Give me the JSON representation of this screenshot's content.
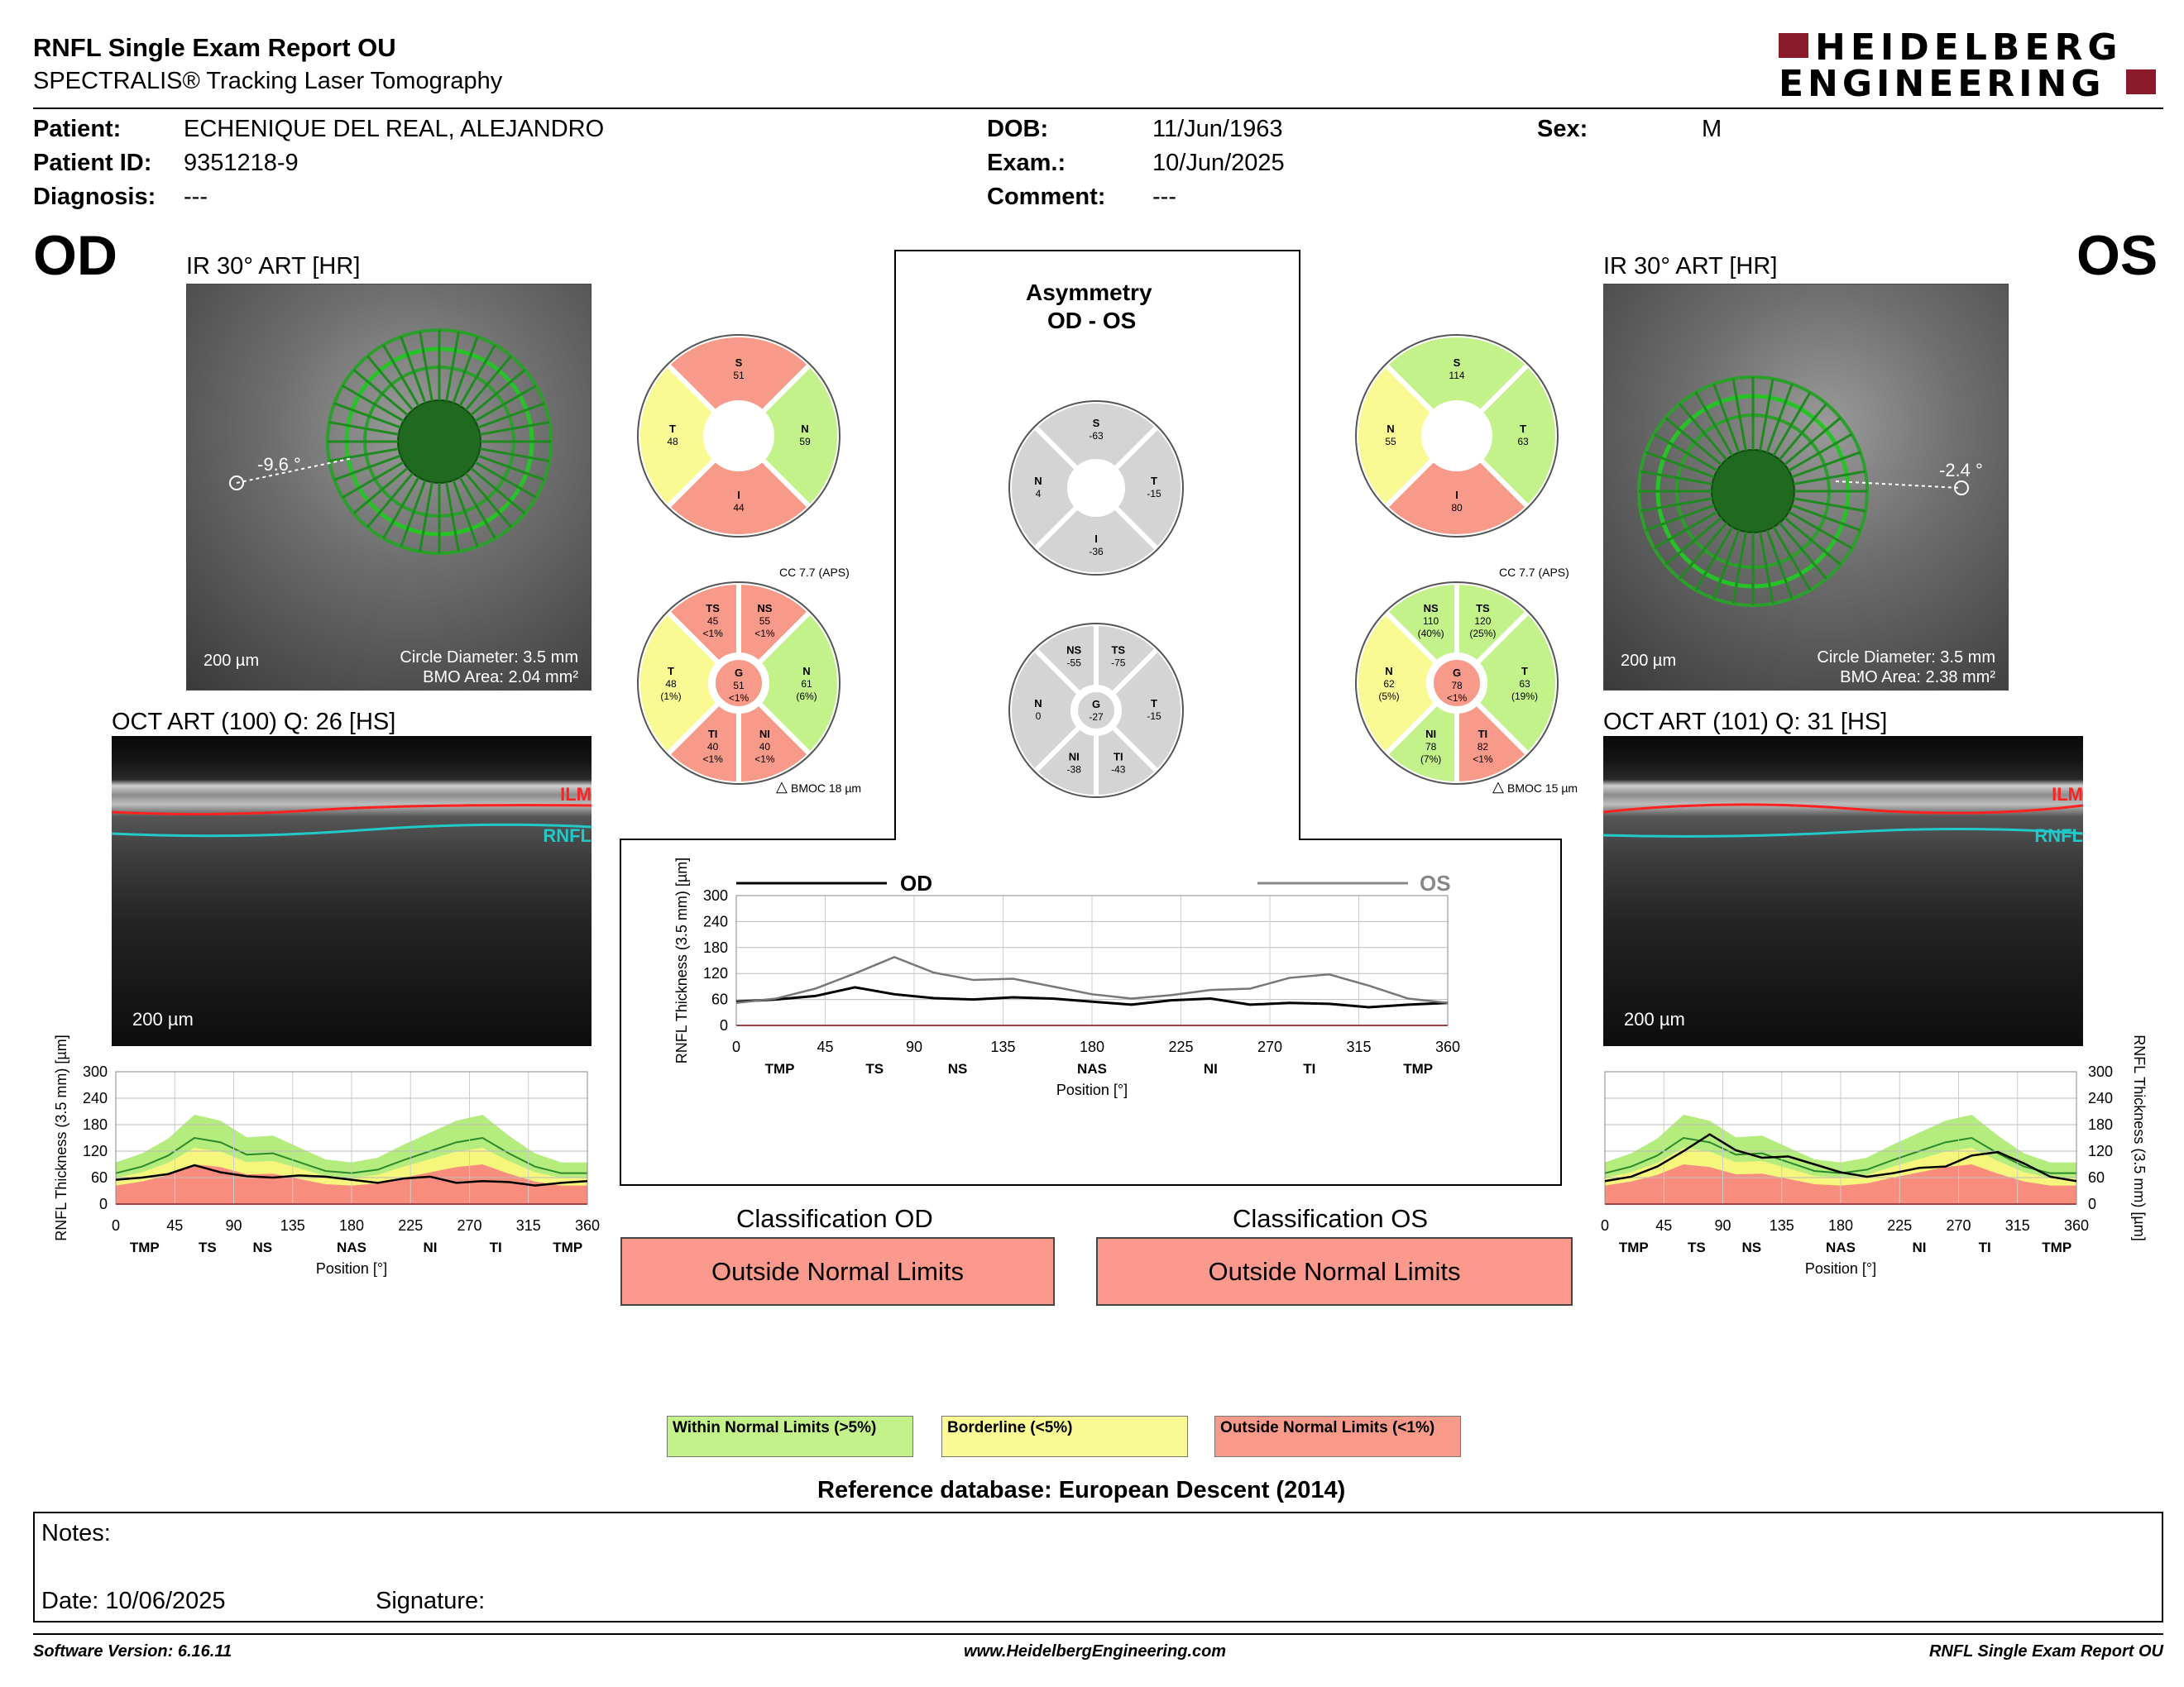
{
  "report": {
    "title": "RNFL Single Exam Report OU",
    "subtitle": "SPECTRALIS® Tracking Laser Tomography"
  },
  "brand": {
    "line1": "HEIDELBERG",
    "line2": "ENGINEERING",
    "accent": "#8b1a2a"
  },
  "patient": {
    "name_label": "Patient:",
    "name": "ECHENIQUE DEL REAL, ALEJANDRO",
    "id_label": "Patient ID:",
    "id": "9351218-9",
    "diagnosis_label": "Diagnosis:",
    "diagnosis": "---",
    "dob_label": "DOB:",
    "dob": "11/Jun/1963",
    "exam_label": "Exam.:",
    "exam": "10/Jun/2025",
    "comment_label": "Comment:",
    "comment": "---",
    "sex_label": "Sex:",
    "sex": "M"
  },
  "od": {
    "eye": "OD",
    "ir_label": "IR 30° ART [HR]",
    "angle": "-9.6 °",
    "scale": "200 µm",
    "circle_diameter": "Circle Diameter: 3.5 mm",
    "bmo_area": "BMO Area: 2.04 mm²",
    "oct_label": "OCT ART (100) Q: 26 [HS]",
    "oct_scale": "200 µm",
    "ilm": "ILM",
    "rnfl": "RNFL",
    "quad": {
      "S": "51",
      "N": "59",
      "I": "44",
      "T": "48"
    },
    "cc": "CC 7.7 (APS)",
    "sectors": {
      "TS": [
        "45",
        "<1%"
      ],
      "NS": [
        "55",
        "<1%"
      ],
      "N": [
        "61",
        "(6%)"
      ],
      "NI": [
        "40",
        "<1%"
      ],
      "TI": [
        "40",
        "<1%"
      ],
      "T": [
        "48",
        "(1%)"
      ],
      "G": [
        "51",
        "<1%"
      ]
    },
    "bmoc": "BMOC 18 µm"
  },
  "os": {
    "eye": "OS",
    "ir_label": "IR 30° ART [HR]",
    "angle": "-2.4 °",
    "scale": "200 µm",
    "circle_diameter": "Circle Diameter: 3.5 mm",
    "bmo_area": "BMO Area: 2.38 mm²",
    "oct_label": "OCT ART (101) Q: 31 [HS]",
    "oct_scale": "200 µm",
    "ilm": "ILM",
    "rnfl": "RNFL",
    "quad": {
      "S": "114",
      "T": "63",
      "I": "80",
      "N": "55"
    },
    "cc": "CC 7.7 (APS)",
    "sectors": {
      "NS": [
        "110",
        "(40%)"
      ],
      "TS": [
        "120",
        "(25%)"
      ],
      "T": [
        "63",
        "(19%)"
      ],
      "TI": [
        "82",
        "<1%"
      ],
      "NI": [
        "78",
        "(7%)"
      ],
      "N": [
        "62",
        "(5%)"
      ],
      "G": [
        "78",
        "<1%"
      ]
    },
    "bmoc": "BMOC 15 µm"
  },
  "asymmetry": {
    "title1": "Asymmetry",
    "title2": "OD - OS",
    "quad": {
      "S": "-63",
      "N": "4",
      "T": "-15",
      "I": "-36"
    },
    "sectors": {
      "NS": "-55",
      "TS": "-75",
      "N": "0",
      "G": "-27",
      "T": "-15",
      "NI": "-38",
      "TI": "-43"
    }
  },
  "colors": {
    "green": "#c3f28a",
    "yellow": "#fafa94",
    "red": "#f89a8a",
    "gray": "#d4d4d4"
  },
  "charts": {
    "ylabel": "RNFL Thickness (3.5 mm) [µm]",
    "xlabel": "Position [°]",
    "yticks": [
      "300",
      "240",
      "180",
      "120",
      "60",
      "0"
    ],
    "xticks": [
      "0",
      "45",
      "90",
      "135",
      "180",
      "225",
      "270",
      "315",
      "360"
    ],
    "sectors": [
      "TMP",
      "TS",
      "NS",
      "NAS",
      "NI",
      "TI",
      "TMP"
    ],
    "od_legend": "OD",
    "os_legend": "OS"
  },
  "classification": {
    "od_title": "Classification OD",
    "os_title": "Classification OS",
    "od_result": "Outside Normal Limits",
    "os_result": "Outside Normal Limits"
  },
  "legend": {
    "within": "Within Normal Limits (>5%)",
    "borderline": "Borderline (<5%)",
    "outside": "Outside Normal Limits (<1%)"
  },
  "reference": "Reference database: European Descent (2014)",
  "notes": {
    "label": "Notes:",
    "date": "Date: 10/06/2025",
    "signature": "Signature:"
  },
  "footer": {
    "version": "Software Version: 6.16.11",
    "url": "www.HeidelbergEngineering.com",
    "report": "RNFL Single Exam Report OU"
  },
  "chart_data": [
    {
      "type": "line",
      "title": "",
      "xlabel": "Position [°]",
      "ylabel": "RNFL Thickness (3.5 mm) [µm]",
      "xlim": [
        0,
        360
      ],
      "ylim": [
        0,
        300
      ],
      "x": [
        0,
        20,
        40,
        60,
        80,
        100,
        120,
        140,
        160,
        180,
        200,
        220,
        240,
        260,
        280,
        300,
        320,
        340,
        360
      ],
      "series": [
        {
          "name": "OD",
          "values": [
            55,
            60,
            68,
            88,
            72,
            63,
            60,
            65,
            62,
            55,
            48,
            58,
            62,
            48,
            52,
            50,
            42,
            48,
            52
          ]
        },
        {
          "name": "OS",
          "values": [
            52,
            62,
            85,
            120,
            158,
            122,
            105,
            108,
            90,
            72,
            62,
            70,
            82,
            85,
            110,
            118,
            92,
            62,
            52
          ]
        }
      ]
    },
    {
      "type": "line",
      "title": "",
      "xlabel": "Position [°]",
      "ylabel": "RNFL Thickness (3.5 mm) [µm]",
      "xlim": [
        0,
        360
      ],
      "ylim": [
        0,
        300
      ],
      "x": [
        0,
        20,
        40,
        60,
        80,
        100,
        120,
        140,
        160,
        180,
        200,
        220,
        240,
        260,
        280,
        300,
        320,
        340,
        360
      ],
      "series": [
        {
          "name": "OD",
          "values": [
            55,
            60,
            68,
            88,
            72,
            63,
            60,
            65,
            62,
            55,
            48,
            58,
            62,
            48,
            52,
            50,
            42,
            48,
            52
          ]
        }
      ]
    },
    {
      "type": "line",
      "title": "",
      "xlabel": "Position [°]",
      "ylabel": "RNFL Thickness (3.5 mm) [µm]",
      "xlim": [
        0,
        360
      ],
      "ylim": [
        0,
        300
      ],
      "x": [
        0,
        20,
        40,
        60,
        80,
        100,
        120,
        140,
        160,
        180,
        200,
        220,
        240,
        260,
        280,
        300,
        320,
        340,
        360
      ],
      "series": [
        {
          "name": "OS",
          "values": [
            52,
            62,
            85,
            120,
            158,
            122,
            105,
            108,
            90,
            72,
            62,
            70,
            82,
            85,
            110,
            118,
            92,
            62,
            52
          ]
        }
      ]
    }
  ]
}
